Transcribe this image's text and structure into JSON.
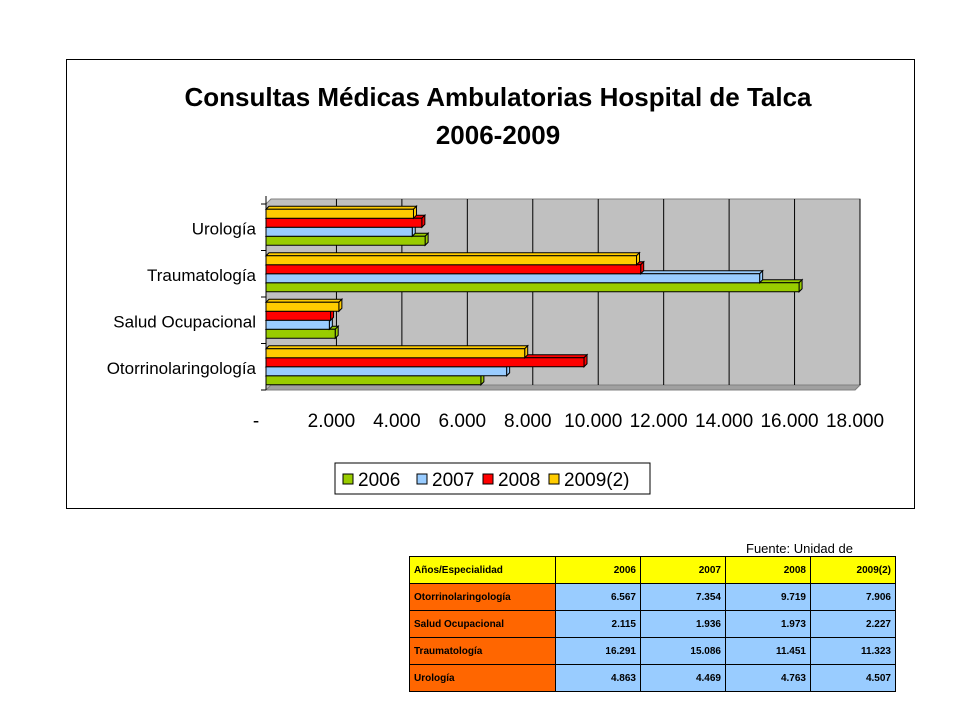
{
  "chart_data": {
    "type": "bar",
    "orientation": "horizontal",
    "title": "Consultas Médicas Ambulatorias Hospital de Talca",
    "subtitle": "2006-2009",
    "categories": [
      "Otorrinolaringología",
      "Salud Ocupacional",
      "Traumatología",
      "Urología"
    ],
    "series": [
      {
        "name": "2006",
        "color": "#99cc00",
        "values": [
          6567,
          2115,
          16291,
          4863
        ]
      },
      {
        "name": "2007",
        "color": "#99ccff",
        "values": [
          7354,
          1936,
          15086,
          4469
        ]
      },
      {
        "name": "2008",
        "color": "#ff0000",
        "values": [
          9719,
          1973,
          11451,
          4763
        ]
      },
      {
        "name": "2009(2)",
        "color": "#ffcc00",
        "values": [
          7906,
          2227,
          11323,
          4507
        ]
      }
    ],
    "xlim": [
      0,
      18000
    ],
    "tick_labels": [
      "-",
      "2.000",
      "4.000",
      "6.000",
      "8.000",
      "10.000",
      "12.000",
      "14.000",
      "16.000",
      "18.000"
    ],
    "grid": true,
    "legend_position": "bottom"
  },
  "source_note": "Fuente: Unidad de Estadística",
  "table": {
    "headers": [
      "Años/Especialidad",
      "2006",
      "2007",
      "2008",
      "2009(2)"
    ],
    "rows": [
      [
        "Otorrinolaringología",
        "6.567",
        "7.354",
        "9.719",
        "7.906"
      ],
      [
        "Salud Ocupacional",
        "2.115",
        "1.936",
        "1.973",
        "2.227"
      ],
      [
        "Traumatología",
        "16.291",
        "15.086",
        "11.451",
        "11.323"
      ],
      [
        "Urología",
        "4.863",
        "4.469",
        "4.763",
        "4.507"
      ]
    ]
  }
}
